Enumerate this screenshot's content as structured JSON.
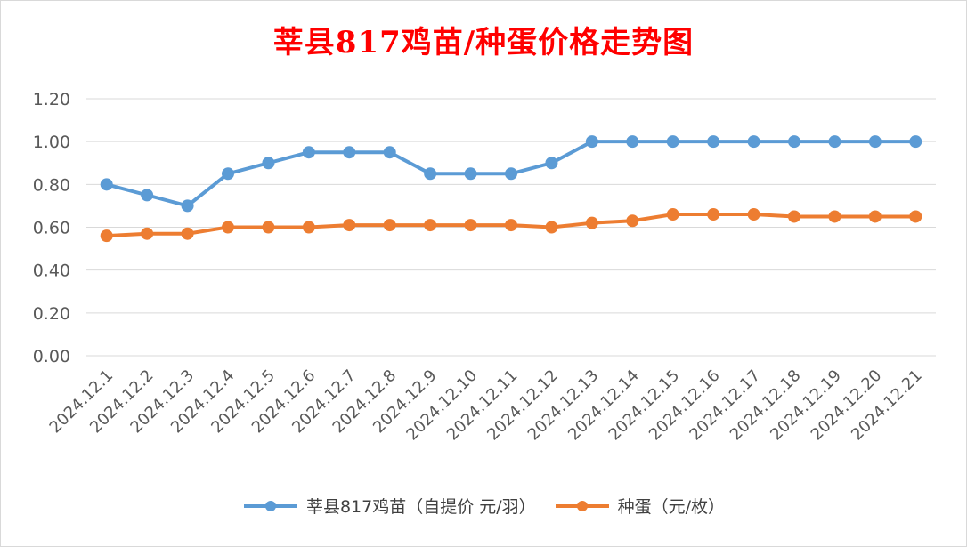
{
  "chart_data": {
    "type": "line",
    "title": "莘县817鸡苗/种蛋价格走势图",
    "categories": [
      "2024.12.1",
      "2024.12.2",
      "2024.12.3",
      "2024.12.4",
      "2024.12.5",
      "2024.12.6",
      "2024.12.7",
      "2024.12.8",
      "2024.12.9",
      "2024.12.10",
      "2024.12.11",
      "2024.12.12",
      "2024.12.13",
      "2024.12.14",
      "2024.12.15",
      "2024.12.16",
      "2024.12.17",
      "2024.12.18",
      "2024.12.19",
      "2024.12.20",
      "2024.12.21"
    ],
    "series": [
      {
        "name": "莘县817鸡苗（自提价 元/羽）",
        "color": "#5b9bd5",
        "values": [
          0.8,
          0.75,
          0.7,
          0.85,
          0.9,
          0.95,
          0.95,
          0.95,
          0.85,
          0.85,
          0.85,
          0.9,
          1.0,
          1.0,
          1.0,
          1.0,
          1.0,
          1.0,
          1.0,
          1.0,
          1.0
        ]
      },
      {
        "name": "种蛋（元/枚）",
        "color": "#ed7d31",
        "values": [
          0.56,
          0.57,
          0.57,
          0.6,
          0.6,
          0.6,
          0.61,
          0.61,
          0.61,
          0.61,
          0.61,
          0.6,
          0.62,
          0.63,
          0.66,
          0.66,
          0.66,
          0.65,
          0.65,
          0.65,
          0.65
        ]
      }
    ],
    "ylim": [
      0,
      1.2
    ],
    "yticks": [
      "0.00",
      "0.20",
      "0.40",
      "0.60",
      "0.80",
      "1.00",
      "1.20"
    ],
    "grid": true,
    "legend_position": "bottom"
  }
}
